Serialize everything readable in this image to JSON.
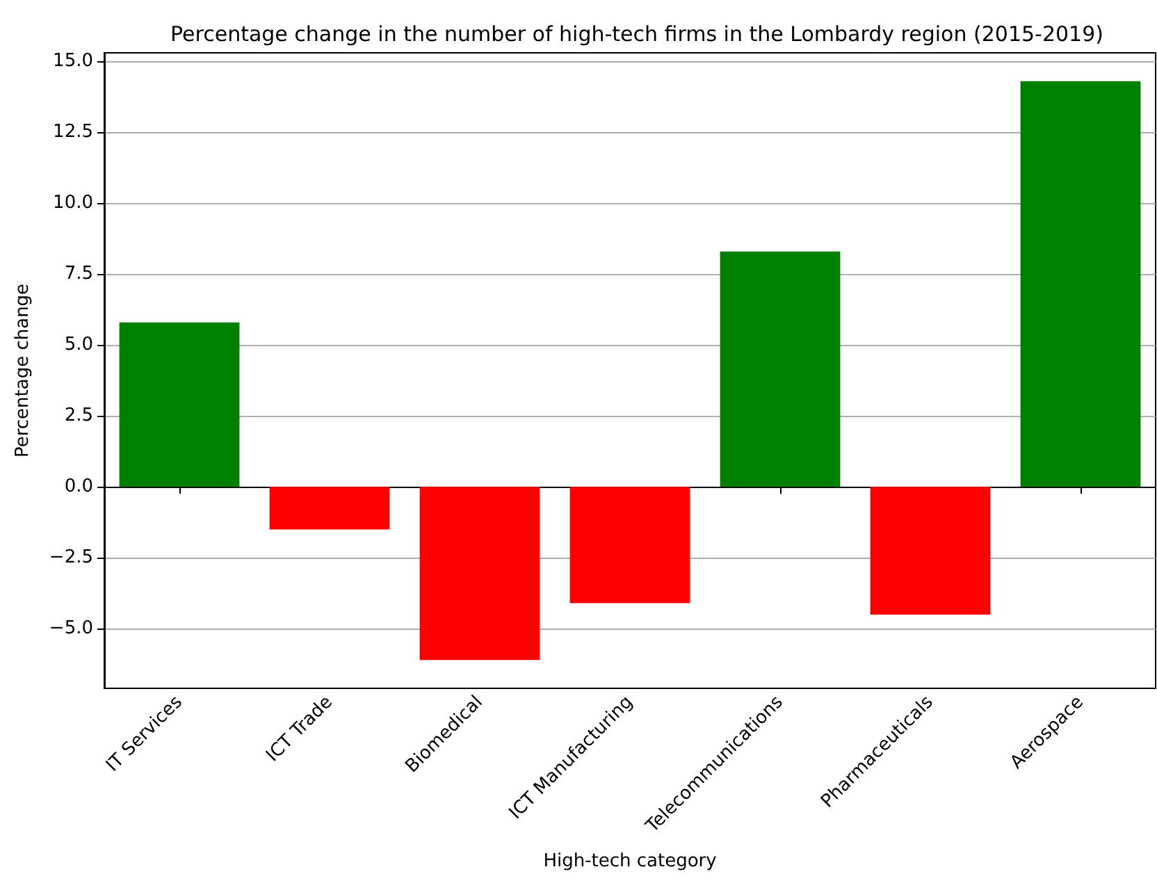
{
  "chart_data": {
    "type": "bar",
    "title": "Percentage change in the number of high-tech firms in the Lombardy region (2015-2019)",
    "xlabel": "High-tech category",
    "ylabel": "Percentage change",
    "categories": [
      "IT Services",
      "ICT Trade",
      "Biomedical",
      "ICT Manufacturing",
      "Telecommunications",
      "Pharmaceuticals",
      "Aerospace"
    ],
    "values": [
      5.8,
      -1.5,
      -6.1,
      -4.1,
      8.3,
      -4.5,
      14.3
    ],
    "colors": [
      "#008000",
      "#ff0000",
      "#ff0000",
      "#ff0000",
      "#008000",
      "#ff0000",
      "#008000"
    ],
    "ylim": [
      -7.1,
      15.3
    ],
    "yticks": [
      {
        "value": -5,
        "label": "−5.0"
      },
      {
        "value": -2.5,
        "label": "−2.5"
      },
      {
        "value": 0,
        "label": "0.0"
      },
      {
        "value": 2.5,
        "label": "2.5"
      },
      {
        "value": 5,
        "label": "5.0"
      },
      {
        "value": 7.5,
        "label": "7.5"
      },
      {
        "value": 10,
        "label": "10.0"
      },
      {
        "value": 12.5,
        "label": "12.5"
      },
      {
        "value": 15,
        "label": "15.0"
      }
    ],
    "grid": "y"
  }
}
